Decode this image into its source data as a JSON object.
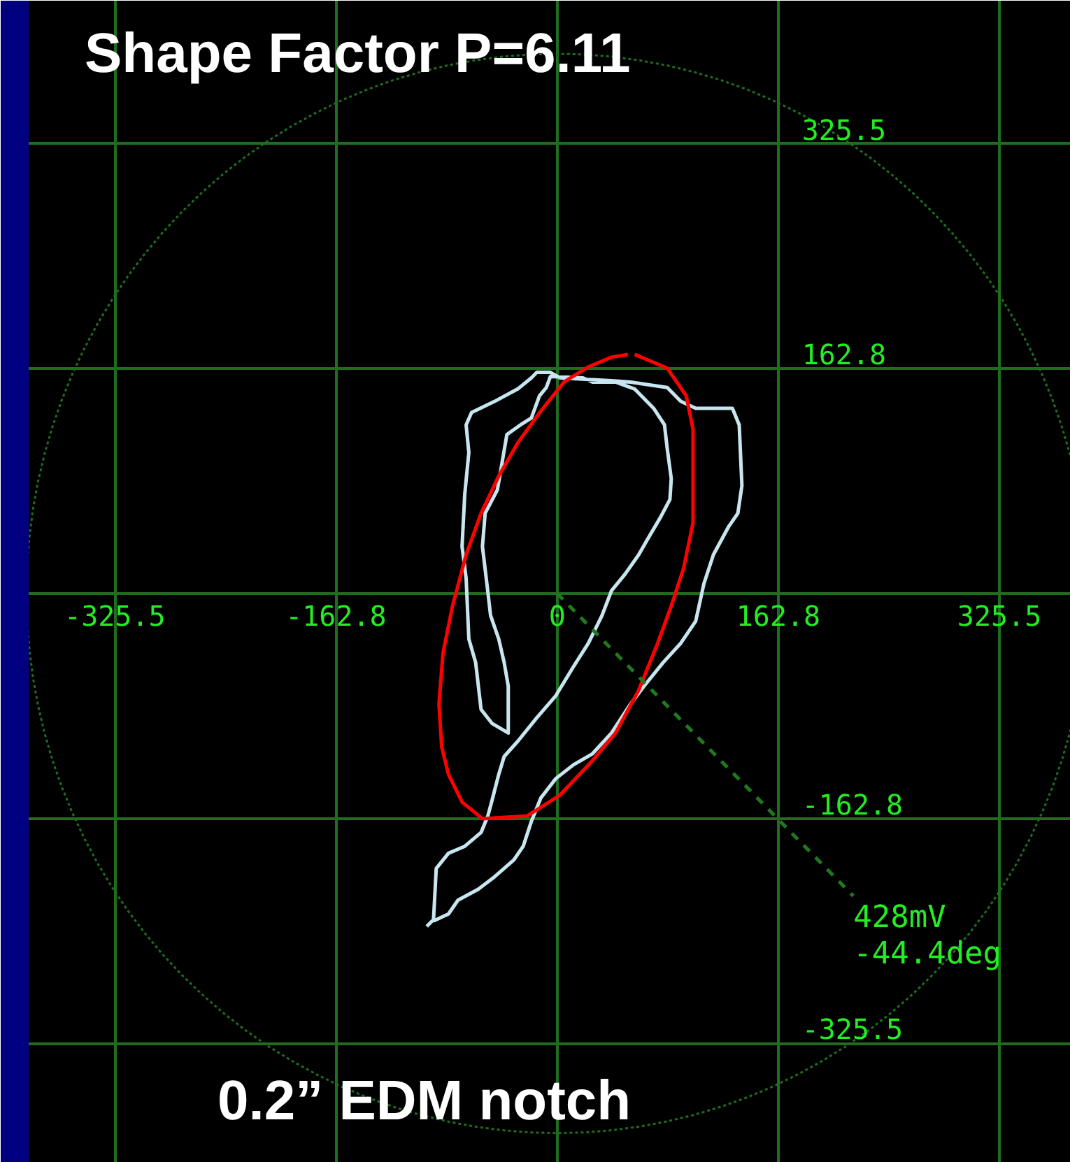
{
  "chart_data": {
    "type": "line",
    "title": "Shape Factor P=6.11",
    "annotations": [
      "0.2” EDM notch",
      {
        "text": "428mV",
        "x": 218,
        "y": -219
      },
      {
        "text": "-44.4deg",
        "x": 218,
        "y": -219
      }
    ],
    "xlim": [
      -389,
      378
    ],
    "ylim": [
      -412,
      429
    ],
    "xticks": [
      -325.5,
      -162.8,
      {
        "value": 0,
        "label": "0"
      },
      162.8,
      325.5
    ],
    "yticks": [
      -325.5,
      -162.8,
      {
        "value": 0,
        "label": null
      },
      162.8,
      325.5
    ],
    "grid": true,
    "marker": "none",
    "series": [
      {
        "color": "#c8e6f0",
        "line_style": "solid",
        "x": [
          -96,
          -91,
          -89,
          -80,
          -68,
          -56,
          -51,
          -48,
          -43,
          -39,
          -29,
          -15,
          -1,
          12,
          23,
          33,
          40,
          50,
          60,
          67,
          76,
          83,
          84,
          81,
          79,
          71,
          57,
          43,
          26,
          19,
          -5,
          -8,
          -13,
          -19,
          -27,
          -37,
          -41,
          -44,
          -53,
          -55,
          -51,
          -49,
          -43,
          -39,
          -36,
          -36,
          -48,
          -56,
          -60,
          -65,
          -67,
          -70,
          -68,
          -65,
          -67,
          -63,
          -46,
          -29,
          -19,
          -15,
          -5,
          2,
          40,
          54,
          81,
          91,
          102,
          129,
          134,
          136,
          133,
          126,
          115,
          108,
          102,
          91,
          78,
          64,
          54,
          40,
          26,
          12,
          -1,
          -12,
          -19,
          -25,
          -32,
          -46,
          -58,
          -73,
          -80,
          -91
        ],
        "values": [
          -241,
          -236,
          -199,
          -188,
          -183,
          -173,
          -161,
          -150,
          -131,
          -118,
          -107,
          -90,
          -74,
          -53,
          -36,
          -16,
          2,
          14,
          28,
          40,
          55,
          68,
          83,
          105,
          122,
          134,
          148,
          153,
          153,
          156,
          157,
          149,
          143,
          127,
          122,
          115,
          92,
          75,
          58,
          34,
          1,
          -16,
          -33,
          -50,
          -67,
          -101,
          -94,
          -84,
          -50,
          -33,
          11,
          34,
          72,
          102,
          122,
          131,
          139,
          148,
          156,
          160,
          160,
          156,
          154,
          153,
          149,
          139,
          134,
          134,
          122,
          78,
          58,
          48,
          28,
          7,
          -20,
          -36,
          -50,
          -67,
          -80,
          -101,
          -116,
          -124,
          -134,
          -148,
          -165,
          -183,
          -193,
          -205,
          -214,
          -222,
          -232,
          -237
        ]
      },
      {
        "color": "#ff0000",
        "line_style": "solid",
        "x": [
          57,
          81,
          95,
          100,
          100,
          93,
          84,
          74,
          60,
          43,
          26,
          2,
          -22,
          -55,
          -70,
          -80,
          -85,
          -87,
          -84,
          -77,
          -67,
          -56,
          -43,
          -29,
          -12,
          5,
          23,
          40,
          52
        ],
        "values": [
          173,
          163,
          143,
          119,
          51,
          18,
          -9,
          -36,
          -70,
          -101,
          -121,
          -146,
          -161,
          -163,
          -151,
          -131,
          -111,
          -80,
          -43,
          -9,
          28,
          58,
          85,
          109,
          132,
          153,
          164,
          171,
          173
        ]
      },
      {
        "color": "#1f7a1f",
        "line_style": "dashed",
        "x": [
          0,
          218
        ],
        "values": [
          0,
          -219
        ]
      }
    ]
  }
}
